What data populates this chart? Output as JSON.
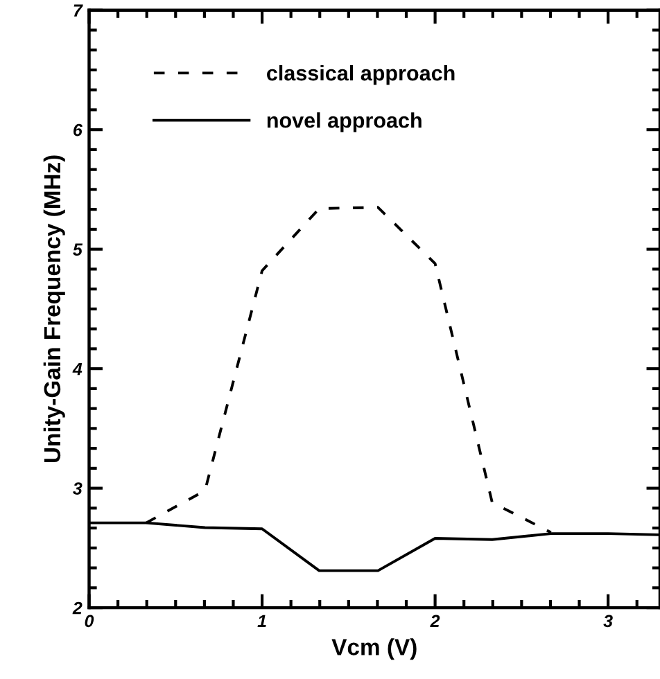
{
  "chart_data": {
    "type": "line",
    "xlabel": "Vcm (V)",
    "ylabel": "Unity-Gain Frequency (MHz)",
    "xlim": [
      0,
      3.3
    ],
    "ylim": [
      2,
      7
    ],
    "xticks": [
      0,
      1,
      2,
      3
    ],
    "yticks": [
      2,
      3,
      4,
      5,
      6,
      7
    ],
    "grid": false,
    "legend": "top left",
    "marker": "none",
    "series": [
      {
        "name": "classical approach",
        "color": "#000000",
        "line_style": "dashed",
        "x": [
          0.33,
          0.67,
          1,
          1.33,
          1.67,
          2,
          2.33,
          2.67
        ],
        "values": [
          2.71,
          2.98,
          4.82,
          5.34,
          5.35,
          4.88,
          2.88,
          2.63
        ]
      },
      {
        "name": "novel approach",
        "color": "#000000",
        "line_style": "solid",
        "x": [
          0,
          0.33,
          0.67,
          1,
          1.33,
          1.67,
          2,
          2.33,
          2.67,
          3,
          3.3
        ],
        "values": [
          2.71,
          2.71,
          2.67,
          2.66,
          2.31,
          2.31,
          2.58,
          2.57,
          2.62,
          2.62,
          2.61
        ]
      }
    ]
  }
}
